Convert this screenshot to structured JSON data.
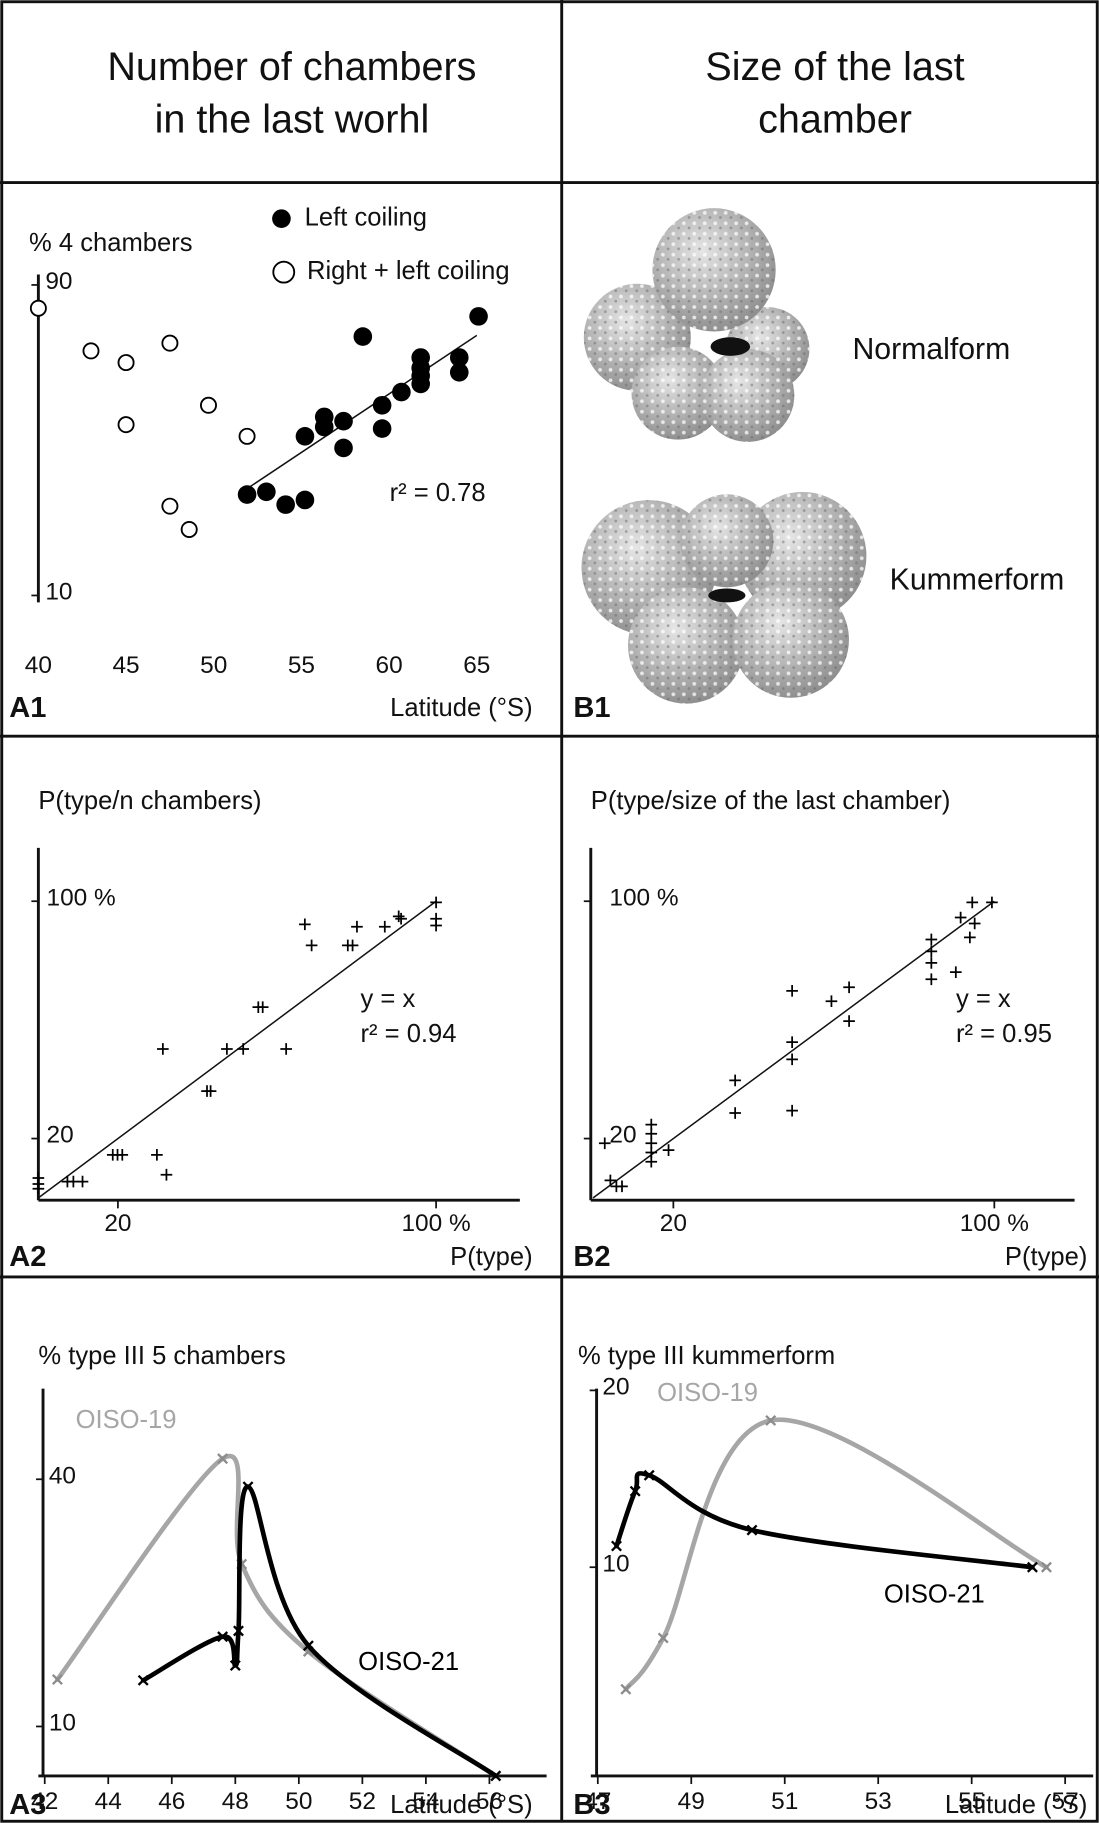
{
  "headers": [
    [
      "Number of chambers",
      "in the last worhl"
    ],
    [
      "Size of the last",
      "chamber"
    ]
  ],
  "b1": {
    "panel": "B1",
    "forms": [
      "Normalform",
      "Kummerform"
    ]
  },
  "chart_data": [
    {
      "type": "scatter",
      "panel": "A1",
      "y_title": "% 4 chambers",
      "x_label": "Latitude (°S)",
      "annotations": [
        "r² = 0.78"
      ],
      "xlim": [
        40,
        65
      ],
      "xticks": [
        40,
        45,
        50,
        55,
        60,
        65
      ],
      "ylim": [
        10,
        90
      ],
      "yticks": [
        10,
        90
      ],
      "series": [
        {
          "name": "Left coiling",
          "color": "#000000",
          "marker": "filled-circle",
          "x": [
            51.9,
            53.0,
            54.1,
            55.2,
            55.2,
            56.3,
            56.3,
            57.4,
            57.4,
            58.5,
            59.6,
            59.6,
            60.7,
            61.8,
            61.8,
            61.8,
            61.8,
            64.0,
            64.0,
            65.1
          ],
          "values": [
            36,
            36.7,
            33.4,
            34.6,
            51,
            56,
            53.4,
            54.9,
            48,
            76.7,
            59,
            53,
            62.4,
            66.6,
            64.5,
            71.3,
            68.6,
            71.3,
            67.5,
            81.9
          ]
        },
        {
          "name": "Right + left coiling",
          "color": "#000000",
          "marker": "open-circle",
          "x": [
            40,
            43,
            45,
            47.5,
            45,
            49.7,
            51.9,
            47.5,
            48.6
          ],
          "values": [
            84,
            73,
            70,
            75,
            54,
            59,
            51,
            33,
            27
          ]
        }
      ],
      "trend_line": {
        "x": [
          51.4,
          65
        ],
        "y": [
          36,
          77
        ]
      }
    },
    {
      "type": "scatter",
      "panel": "A2",
      "y_title": "P(type/n chambers)",
      "x_label": "P(type)",
      "annotations": [
        "y = x",
        "r² = 0.94"
      ],
      "xlim": [
        0,
        121
      ],
      "xticks": [
        20,
        {
          "value": 100,
          "label": "100 %"
        }
      ],
      "ylim": [
        0,
        118
      ],
      "yticks": [
        20,
        {
          "value": 100,
          "label": "100 %"
        }
      ],
      "color": "#000000",
      "marker": "plus",
      "x": [
        0,
        0,
        0,
        7.3,
        8.8,
        11.1,
        18.7,
        19.9,
        21.1,
        29.8,
        32.2,
        31.3,
        42.4,
        43.3,
        47.4,
        51.5,
        55.3,
        56.4,
        62.3,
        67,
        68.7,
        77.8,
        79,
        80.1,
        87.1,
        90.6,
        91.2,
        100,
        100,
        100
      ],
      "values": [
        6.7,
        4.7,
        3.1,
        5.5,
        5.5,
        5.5,
        14.5,
        14.5,
        14.5,
        14.5,
        7.8,
        50.2,
        36,
        36,
        50.2,
        50.2,
        64.3,
        64.3,
        50.2,
        92.2,
        85.1,
        85.1,
        85.1,
        91.4,
        91.4,
        94.9,
        94.1,
        99.6,
        94.1,
        91.8
      ],
      "fit_line": {
        "x": [
          0,
          100
        ],
        "y": [
          0,
          100
        ]
      }
    },
    {
      "type": "scatter",
      "panel": "B2",
      "y_title": "P(type/size of the last chamber)",
      "x_label": "P(type)",
      "annotations": [
        "y = x",
        "r² = 0.95"
      ],
      "xlim": [
        0,
        120
      ],
      "xticks": [
        20,
        {
          "value": 100,
          "label": "100 %"
        }
      ],
      "ylim": [
        0,
        118
      ],
      "yticks": [
        20,
        {
          "value": 100,
          "label": "100 %"
        }
      ],
      "color": "#000000",
      "marker": "plus",
      "x": [
        2.9,
        4.3,
        5.8,
        7.2,
        14.5,
        14.5,
        14.5,
        14.5,
        14.5,
        18.8,
        35.4,
        35.4,
        49.6,
        49.6,
        49.6,
        49.6,
        59.4,
        63.8,
        63.8,
        84.3,
        84.3,
        84.3,
        84.3,
        90.4,
        91.6,
        93.9,
        94.5,
        95.1,
        99.4
      ],
      "values": [
        18.4,
        5.9,
        3.9,
        3.9,
        24.7,
        21.6,
        18.4,
        15.3,
        12.2,
        16.1,
        39.6,
        28.6,
        69.8,
        52.5,
        46.7,
        29.4,
        66.3,
        71,
        59.6,
        87.1,
        83.1,
        79.2,
        73.7,
        76.1,
        94.5,
        87.8,
        99.6,
        92.5,
        99.6
      ],
      "fit_line": {
        "x": [
          0,
          100
        ],
        "y": [
          0,
          100
        ]
      }
    },
    {
      "type": "line",
      "panel": "A3",
      "y_title": "% type III 5 chambers",
      "x_label": "Latitude (°S)",
      "xlim": [
        41.8,
        57.8
      ],
      "xticks": [
        42,
        44,
        46,
        48,
        50,
        52,
        54,
        56
      ],
      "ylim": [
        4,
        51
      ],
      "yticks": [
        10,
        40
      ],
      "series": [
        {
          "name": "OISO-19",
          "color": "#a6a6a6",
          "x": [
            42.4,
            47.6,
            48.2,
            50.3,
            56.2
          ],
          "values": [
            15.7,
            42.5,
            29.7,
            19.1,
            4
          ]
        },
        {
          "name": "OISO-21",
          "color": "#000000",
          "x": [
            45.1,
            47.6,
            48.0,
            48.1,
            48.4,
            50.3,
            56.2
          ],
          "values": [
            15.6,
            20.9,
            17.4,
            21.6,
            39.1,
            19.8,
            4
          ]
        }
      ]
    },
    {
      "type": "line",
      "panel": "B3",
      "y_title": "% type III kummerform",
      "x_label": "Latitude (°S)",
      "xlim": [
        46.85,
        57.6
      ],
      "xticks": [
        47,
        49,
        51,
        53,
        55,
        57
      ],
      "ylim": [
        -1.8,
        20.1
      ],
      "yticks": [
        10,
        20
      ],
      "series": [
        {
          "name": "OISO-19",
          "color": "#a6a6a6",
          "x": [
            47.6,
            48.4,
            50.7,
            56.6
          ],
          "values": [
            3.1,
            6.0,
            18.3,
            10.0
          ]
        },
        {
          "name": "OISO-21",
          "color": "#000000",
          "x": [
            47.4,
            47.8,
            48.1,
            50.3,
            56.3
          ],
          "values": [
            11.2,
            14.3,
            15.2,
            12.1,
            10.0
          ]
        }
      ]
    }
  ]
}
